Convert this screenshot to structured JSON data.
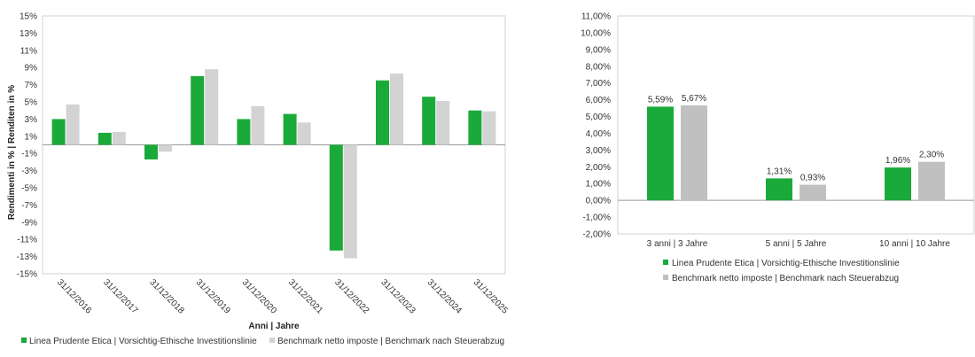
{
  "colors": {
    "primary": "#1aaa3a",
    "benchmark": "#d3d3d3",
    "benchmark_right": "#c0c0c0"
  },
  "chart_data": [
    {
      "type": "bar",
      "title": "",
      "xlabel": "Anni | Jahre",
      "ylabel": "Rendimenti in % | Renditen in %",
      "ylim": [
        -15,
        15
      ],
      "yticks": [
        "15%",
        "13%",
        "11%",
        "9%",
        "7%",
        "5%",
        "3%",
        "1%",
        "-1%",
        "-3%",
        "-5%",
        "-7%",
        "-9%",
        "-11%",
        "-13%",
        "-15%"
      ],
      "categories": [
        "31/12/2016",
        "31/12/2017",
        "31/12/2018",
        "31/12/2019",
        "31/12/2020",
        "31/12/2021",
        "31/12/2022",
        "31/12/2023",
        "31/12/2024",
        "31/12/2025"
      ],
      "series": [
        {
          "name": "Linea Prudente Etica | Vorsichtig-Ethische Investitionslinie",
          "values": [
            3.0,
            1.4,
            -1.7,
            8.0,
            3.0,
            3.6,
            -12.3,
            7.5,
            5.6,
            4.0
          ]
        },
        {
          "name": "Benchmark netto imposte | Benchmark nach Steuerabzug",
          "values": [
            4.7,
            1.5,
            -0.8,
            8.8,
            4.5,
            2.6,
            -13.2,
            8.3,
            5.1,
            3.9
          ]
        }
      ],
      "legend": "bottom"
    },
    {
      "type": "bar",
      "title": "",
      "ylim": [
        -2,
        11
      ],
      "yticks": [
        "11,00%",
        "10,00%",
        "9,00%",
        "8,00%",
        "7,00%",
        "6,00%",
        "5,00%",
        "4,00%",
        "3,00%",
        "2,00%",
        "1,00%",
        "0,00%",
        "-1,00%",
        "-2,00%"
      ],
      "categories": [
        "3 anni | 3 Jahre",
        "5 anni | 5 Jahre",
        "10 anni | 10 Jahre"
      ],
      "series": [
        {
          "name": "Linea Prudente Etica | Vorsichtig-Ethische Investitionslinie",
          "values": [
            5.59,
            1.31,
            1.96
          ],
          "labels": [
            "5,59%",
            "1,31%",
            "1,96%"
          ]
        },
        {
          "name": "Benchmark netto imposte | Benchmark nach Steuerabzug",
          "values": [
            5.67,
            0.93,
            2.3
          ],
          "labels": [
            "5,67%",
            "0,93%",
            "2,30%"
          ]
        }
      ],
      "legend": "bottom"
    }
  ]
}
